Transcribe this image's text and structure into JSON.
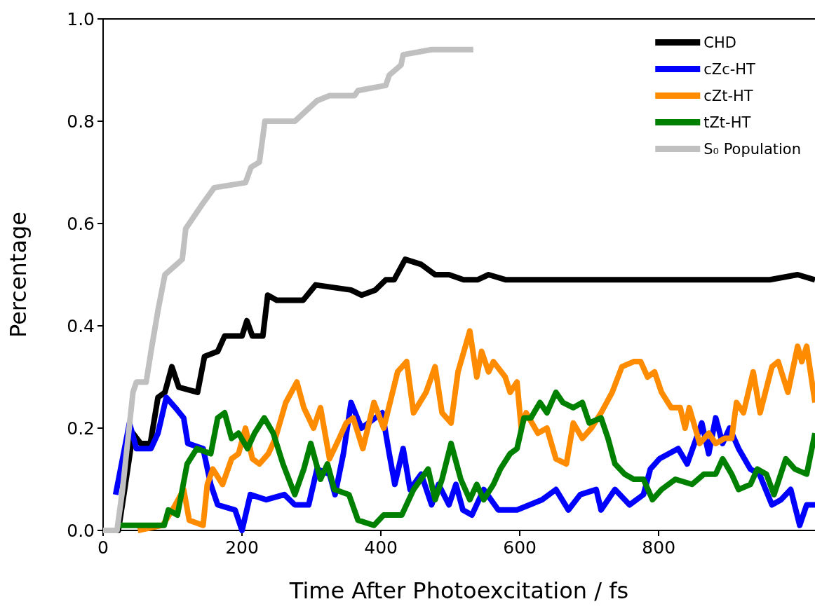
{
  "chart_data": {
    "type": "line",
    "xlabel": "Time After Photoexcitation / fs",
    "ylabel": "Percentage",
    "xlim": [
      0,
      1025
    ],
    "ylim": [
      0,
      1
    ],
    "xticks": [
      0,
      200,
      400,
      600,
      800
    ],
    "yticks": [
      {
        "value": 0,
        "label": "0.0"
      },
      {
        "value": 0.2,
        "label": "0.2"
      },
      {
        "value": 0.4,
        "label": "0.4"
      },
      {
        "value": 0.6,
        "label": "0.6"
      },
      {
        "value": 0.8,
        "label": "0.8"
      },
      {
        "value": 1,
        "label": "1.0"
      }
    ],
    "grid": false,
    "legend": "top right",
    "marker": "none",
    "line_style": "solid",
    "series": [
      {
        "name": "CHD",
        "color": "#000000",
        "x": [
          0,
          22,
          31,
          43,
          54,
          68,
          79,
          89,
          99,
          109,
          136,
          146,
          165,
          175,
          200,
          207,
          215,
          230,
          237,
          250,
          288,
          306,
          357,
          372,
          392,
          407,
          419,
          435,
          458,
          478,
          498,
          519,
          539,
          555,
          580,
          650,
          700,
          780,
          830,
          900,
          960,
          1000,
          1025
        ],
        "values": [
          0,
          0,
          0.08,
          0.19,
          0.17,
          0.17,
          0.26,
          0.27,
          0.32,
          0.28,
          0.27,
          0.34,
          0.35,
          0.38,
          0.38,
          0.41,
          0.38,
          0.38,
          0.46,
          0.45,
          0.45,
          0.48,
          0.47,
          0.46,
          0.47,
          0.49,
          0.49,
          0.53,
          0.52,
          0.5,
          0.5,
          0.49,
          0.49,
          0.5,
          0.49,
          0.49,
          0.49,
          0.49,
          0.49,
          0.49,
          0.49,
          0.5,
          0.49
        ]
      },
      {
        "name": "cZc-HT",
        "color": "#0000ff",
        "x": [
          18,
          38,
          48,
          69,
          79,
          91,
          104,
          116,
          122,
          144,
          155,
          165,
          190,
          200,
          212,
          235,
          261,
          276,
          296,
          308,
          326,
          334,
          346,
          357,
          372,
          402,
          412,
          420,
          432,
          442,
          458,
          473,
          483,
          498,
          508,
          518,
          531,
          548,
          569,
          596,
          632,
          652,
          670,
          687,
          710,
          717,
          737,
          758,
          778,
          788,
          801,
          828,
          841,
          862,
          872,
          882,
          892,
          902,
          915,
          932,
          945,
          963,
          976,
          990,
          1003,
          1013,
          1025
        ],
        "values": [
          0.07,
          0.21,
          0.16,
          0.16,
          0.19,
          0.26,
          0.24,
          0.22,
          0.17,
          0.16,
          0.09,
          0.05,
          0.04,
          0,
          0.07,
          0.06,
          0.07,
          0.05,
          0.05,
          0.12,
          0.11,
          0.07,
          0.15,
          0.25,
          0.2,
          0.23,
          0.15,
          0.09,
          0.16,
          0.08,
          0.11,
          0.05,
          0.09,
          0.05,
          0.09,
          0.04,
          0.03,
          0.08,
          0.04,
          0.04,
          0.06,
          0.08,
          0.04,
          0.07,
          0.08,
          0.04,
          0.08,
          0.05,
          0.07,
          0.12,
          0.14,
          0.16,
          0.13,
          0.21,
          0.15,
          0.22,
          0.17,
          0.2,
          0.16,
          0.12,
          0.11,
          0.05,
          0.06,
          0.08,
          0.01,
          0.05,
          0.05
        ]
      },
      {
        "name": "cZt-HT",
        "color": "#ff8c00",
        "x": [
          50,
          86,
          104,
          116,
          124,
          144,
          150,
          158,
          172,
          185,
          195,
          205,
          215,
          225,
          238,
          248,
          263,
          279,
          289,
          303,
          313,
          326,
          340,
          350,
          360,
          374,
          390,
          404,
          424,
          437,
          447,
          465,
          478,
          488,
          501,
          511,
          528,
          538,
          545,
          555,
          562,
          579,
          586,
          596,
          602,
          609,
          626,
          639,
          652,
          667,
          677,
          690,
          703,
          717,
          733,
          747,
          764,
          774,
          784,
          794,
          804,
          818,
          831,
          838,
          844,
          859,
          872,
          882,
          895,
          905,
          912,
          922,
          936,
          946,
          963,
          972,
          986,
          1000,
          1006,
          1013,
          1025
        ],
        "values": [
          0,
          0.01,
          0.05,
          0.08,
          0.02,
          0.01,
          0.09,
          0.12,
          0.09,
          0.14,
          0.15,
          0.2,
          0.14,
          0.13,
          0.15,
          0.18,
          0.25,
          0.29,
          0.24,
          0.2,
          0.24,
          0.14,
          0.18,
          0.21,
          0.22,
          0.16,
          0.25,
          0.2,
          0.31,
          0.33,
          0.23,
          0.27,
          0.32,
          0.23,
          0.21,
          0.31,
          0.39,
          0.3,
          0.35,
          0.31,
          0.33,
          0.3,
          0.27,
          0.29,
          0.2,
          0.23,
          0.19,
          0.2,
          0.14,
          0.13,
          0.21,
          0.18,
          0.2,
          0.23,
          0.27,
          0.32,
          0.33,
          0.33,
          0.3,
          0.31,
          0.27,
          0.24,
          0.24,
          0.2,
          0.24,
          0.17,
          0.19,
          0.17,
          0.18,
          0.18,
          0.25,
          0.23,
          0.31,
          0.23,
          0.32,
          0.33,
          0.27,
          0.36,
          0.33,
          0.36,
          0.25
        ]
      },
      {
        "name": "tZt-HT",
        "color": "#008000",
        "x": [
          20,
          88,
          94,
          107,
          121,
          135,
          155,
          165,
          175,
          185,
          195,
          208,
          218,
          232,
          245,
          259,
          276,
          289,
          299,
          313,
          323,
          333,
          354,
          367,
          390,
          404,
          430,
          447,
          468,
          478,
          488,
          501,
          515,
          528,
          538,
          548,
          562,
          572,
          586,
          596,
          606,
          616,
          629,
          639,
          652,
          662,
          677,
          690,
          700,
          717,
          727,
          737,
          751,
          764,
          778,
          791,
          804,
          824,
          848,
          865,
          882,
          892,
          905,
          915,
          932,
          942,
          955,
          966,
          983,
          996,
          1013,
          1025
        ],
        "values": [
          0.01,
          0.01,
          0.04,
          0.03,
          0.13,
          0.16,
          0.15,
          0.22,
          0.23,
          0.18,
          0.19,
          0.16,
          0.19,
          0.22,
          0.19,
          0.13,
          0.07,
          0.12,
          0.17,
          0.1,
          0.13,
          0.08,
          0.07,
          0.02,
          0.01,
          0.03,
          0.03,
          0.08,
          0.12,
          0.06,
          0.1,
          0.17,
          0.1,
          0.06,
          0.09,
          0.06,
          0.09,
          0.12,
          0.15,
          0.16,
          0.22,
          0.22,
          0.25,
          0.23,
          0.27,
          0.25,
          0.24,
          0.25,
          0.21,
          0.22,
          0.18,
          0.13,
          0.11,
          0.1,
          0.1,
          0.06,
          0.08,
          0.1,
          0.09,
          0.11,
          0.11,
          0.14,
          0.11,
          0.08,
          0.09,
          0.12,
          0.11,
          0.07,
          0.14,
          0.12,
          0.11,
          0.19
        ]
      },
      {
        "name": "S₀ Population",
        "color": "#c0c0c0",
        "x": [
          0,
          20,
          28,
          43,
          48,
          62,
          69,
          79,
          89,
          114,
          119,
          144,
          160,
          205,
          213,
          225,
          233,
          276,
          284,
          308,
          326,
          362,
          367,
          407,
          412,
          429,
          432,
          473,
          476,
          533
        ],
        "values": [
          0,
          0,
          0.08,
          0.27,
          0.29,
          0.29,
          0.35,
          0.43,
          0.5,
          0.53,
          0.59,
          0.64,
          0.67,
          0.68,
          0.71,
          0.72,
          0.8,
          0.8,
          0.81,
          0.84,
          0.85,
          0.85,
          0.86,
          0.87,
          0.89,
          0.91,
          0.93,
          0.94,
          0.94,
          0.94
        ]
      }
    ]
  }
}
